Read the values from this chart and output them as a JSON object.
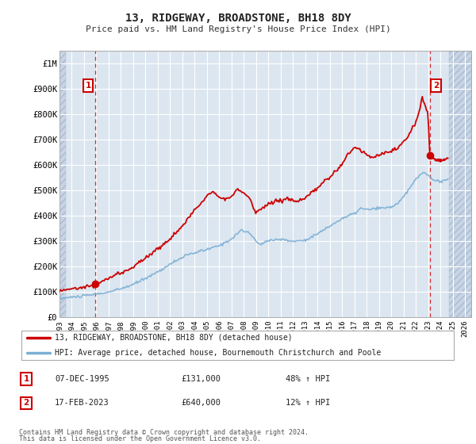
{
  "title": "13, RIDGEWAY, BROADSTONE, BH18 8DY",
  "subtitle": "Price paid vs. HM Land Registry's House Price Index (HPI)",
  "ylim": [
    0,
    1050000
  ],
  "xlim_start": 1993.0,
  "xlim_end": 2026.5,
  "background_color": "#ffffff",
  "plot_bg_color": "#dce6f0",
  "hatch_color": "#c8d4e4",
  "grid_color": "#ffffff",
  "property_color": "#cc0000",
  "hpi_color": "#7bafd4",
  "marker1_date": 1995.93,
  "marker1_value": 131000,
  "marker2_date": 2023.12,
  "marker2_value": 640000,
  "annotation1_label": "1",
  "annotation2_label": "2",
  "legend_property": "13, RIDGEWAY, BROADSTONE, BH18 8DY (detached house)",
  "legend_hpi": "HPI: Average price, detached house, Bournemouth Christchurch and Poole",
  "table_rows": [
    {
      "num": "1",
      "date": "07-DEC-1995",
      "price": "£131,000",
      "change": "48% ↑ HPI"
    },
    {
      "num": "2",
      "date": "17-FEB-2023",
      "price": "£640,000",
      "change": "12% ↑ HPI"
    }
  ],
  "footnote1": "Contains HM Land Registry data © Crown copyright and database right 2024.",
  "footnote2": "This data is licensed under the Open Government Licence v3.0.",
  "yticks": [
    0,
    100000,
    200000,
    300000,
    400000,
    500000,
    600000,
    700000,
    800000,
    900000,
    1000000
  ],
  "ytick_labels": [
    "£0",
    "£100K",
    "£200K",
    "£300K",
    "£400K",
    "£500K",
    "£600K",
    "£700K",
    "£800K",
    "£900K",
    "£1M"
  ],
  "xticks": [
    1993,
    1994,
    1995,
    1996,
    1997,
    1998,
    1999,
    2000,
    2001,
    2002,
    2003,
    2004,
    2005,
    2006,
    2007,
    2008,
    2009,
    2010,
    2011,
    2012,
    2013,
    2014,
    2015,
    2016,
    2017,
    2018,
    2019,
    2020,
    2021,
    2022,
    2023,
    2024,
    2025,
    2026
  ]
}
